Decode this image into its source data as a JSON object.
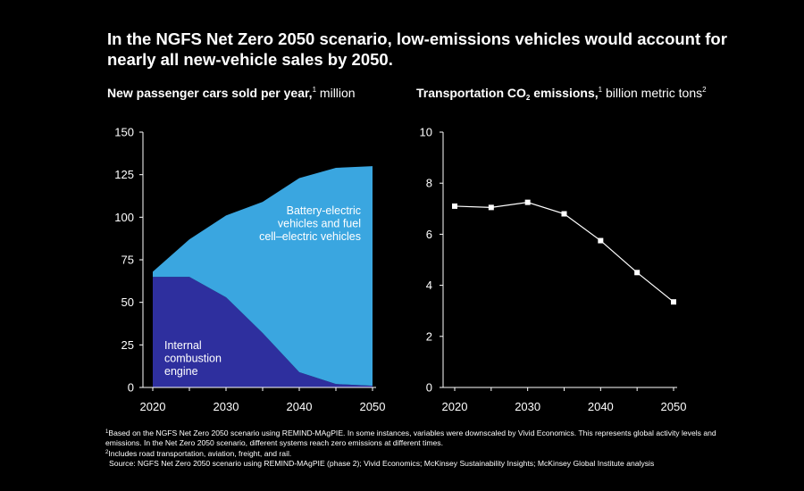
{
  "headline": "In the NGFS Net Zero 2050 scenario, low-emissions vehicles would account for nearly all new-vehicle sales by 2050.",
  "colors": {
    "background": "#000000",
    "bev": "#3aa6e0",
    "ice": "#2e2f9e",
    "line": "#ffffff"
  },
  "chart_data": [
    {
      "type": "area",
      "title_bold": "New passenger cars sold per year,",
      "title_sup": "1",
      "title_rest": " million",
      "x": [
        2020,
        2025,
        2030,
        2035,
        2040,
        2045,
        2050
      ],
      "x_ticks": [
        2020,
        2030,
        2040,
        2050
      ],
      "y_ticks": [
        0,
        25,
        50,
        75,
        100,
        125,
        150
      ],
      "ylim": [
        0,
        150
      ],
      "stacked": true,
      "series": [
        {
          "name_lines": [
            "Internal",
            "combustion",
            "engine"
          ],
          "values": [
            65,
            65,
            53,
            32,
            9,
            2,
            1
          ],
          "color": "#2e2f9e"
        },
        {
          "name_lines": [
            "Battery-electric",
            "vehicles and fuel",
            "cell–electric vehicles"
          ],
          "values": [
            3,
            22,
            48,
            77,
            114,
            127,
            129
          ],
          "color": "#3aa6e0"
        }
      ],
      "totals": [
        68,
        87,
        101,
        109,
        123,
        129,
        130
      ]
    },
    {
      "type": "line",
      "title_bold": "Transportation CO",
      "title_sub": "2",
      "title_bold_end": " emissions,",
      "title_sup": "1",
      "title_rest": " billion metric tons",
      "title_sup2": "2",
      "x": [
        2020,
        2025,
        2030,
        2035,
        2040,
        2045,
        2050
      ],
      "x_ticks": [
        2020,
        2030,
        2040,
        2050
      ],
      "y_ticks": [
        0,
        2,
        4,
        6,
        8,
        10
      ],
      "ylim": [
        0,
        10
      ],
      "values": [
        7.1,
        7.05,
        7.25,
        6.8,
        5.75,
        4.5,
        3.35
      ]
    }
  ],
  "footnotes": {
    "f1_mark": "1",
    "f1_text": "Based on the NGFS Net Zero 2050 scenario using REMIND-MAgPIE. In some instances, variables were downscaled by Vivid Economics. This represents global activity levels and emissions. In the Net Zero 2050 scenario, different systems reach zero emissions at different times.",
    "f2_mark": "2",
    "f2_text": "Includes road transportation, aviation, freight, and rail.",
    "source": "Source: NGFS Net Zero 2050 scenario using REMIND-MAgPIE (phase 2); Vivid Economics; McKinsey Sustainability Insights; McKinsey Global Institute analysis"
  }
}
